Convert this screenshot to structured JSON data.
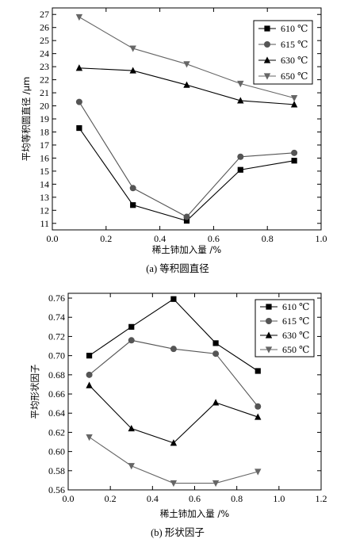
{
  "chart_data": [
    {
      "type": "line",
      "caption": "(a) 等积圆直径",
      "xlabel": "稀土铈加入量 /%",
      "ylabel": "平均等积圆直径 /μm",
      "xlim": [
        0.0,
        1.0
      ],
      "ylim": [
        10.5,
        27.5
      ],
      "xticks": [
        "0.0",
        "0.2",
        "0.4",
        "0.6",
        "0.8",
        "1.0"
      ],
      "yticks": [
        "11",
        "12",
        "13",
        "14",
        "15",
        "16",
        "17",
        "18",
        "19",
        "20",
        "21",
        "22",
        "23",
        "24",
        "25",
        "26",
        "27"
      ],
      "legend_position": "top-right",
      "series": [
        {
          "name": "610 ℃",
          "marker": "square",
          "color": "#000000",
          "x": [
            0.1,
            0.3,
            0.5,
            0.7,
            0.9
          ],
          "values": [
            18.3,
            12.4,
            11.2,
            15.1,
            15.8
          ]
        },
        {
          "name": "615 ℃",
          "marker": "circle",
          "color": "#555555",
          "x": [
            0.1,
            0.3,
            0.5,
            0.7,
            0.9
          ],
          "values": [
            20.3,
            13.7,
            11.5,
            16.1,
            16.4
          ]
        },
        {
          "name": "630 ℃",
          "marker": "triangle-up",
          "color": "#000000",
          "x": [
            0.1,
            0.3,
            0.5,
            0.7,
            0.9
          ],
          "values": [
            22.9,
            22.7,
            21.6,
            20.4,
            20.1
          ]
        },
        {
          "name": "650 ℃",
          "marker": "triangle-down",
          "color": "#666666",
          "x": [
            0.1,
            0.3,
            0.5,
            0.7,
            0.9
          ],
          "values": [
            26.8,
            24.4,
            23.2,
            21.7,
            20.6
          ]
        }
      ]
    },
    {
      "type": "line",
      "caption": "(b) 形状因子",
      "xlabel": "稀土铈加入量 /%",
      "ylabel": "平均形状因子",
      "xlim": [
        0.0,
        1.2
      ],
      "ylim": [
        0.56,
        0.765
      ],
      "xticks": [
        "0.0",
        "0.2",
        "0.4",
        "0.6",
        "0.8",
        "1.0",
        "1.2"
      ],
      "yticks": [
        "0.56",
        "0.58",
        "0.60",
        "0.62",
        "0.64",
        "0.66",
        "0.68",
        "0.70",
        "0.72",
        "0.74",
        "0.76"
      ],
      "legend_position": "top-right",
      "series": [
        {
          "name": "610 ℃",
          "marker": "square",
          "color": "#000000",
          "x": [
            0.1,
            0.3,
            0.5,
            0.7,
            0.9
          ],
          "values": [
            0.7,
            0.73,
            0.759,
            0.713,
            0.684
          ]
        },
        {
          "name": "615 ℃",
          "marker": "circle",
          "color": "#555555",
          "x": [
            0.1,
            0.3,
            0.5,
            0.7,
            0.9
          ],
          "values": [
            0.68,
            0.716,
            0.707,
            0.702,
            0.647
          ]
        },
        {
          "name": "630 ℃",
          "marker": "triangle-up",
          "color": "#000000",
          "x": [
            0.1,
            0.3,
            0.5,
            0.7,
            0.9
          ],
          "values": [
            0.669,
            0.624,
            0.609,
            0.651,
            0.636
          ]
        },
        {
          "name": "650 ℃",
          "marker": "triangle-down",
          "color": "#666666",
          "x": [
            0.1,
            0.3,
            0.5,
            0.7,
            0.9
          ],
          "values": [
            0.615,
            0.585,
            0.567,
            0.567,
            0.579
          ]
        }
      ]
    }
  ]
}
